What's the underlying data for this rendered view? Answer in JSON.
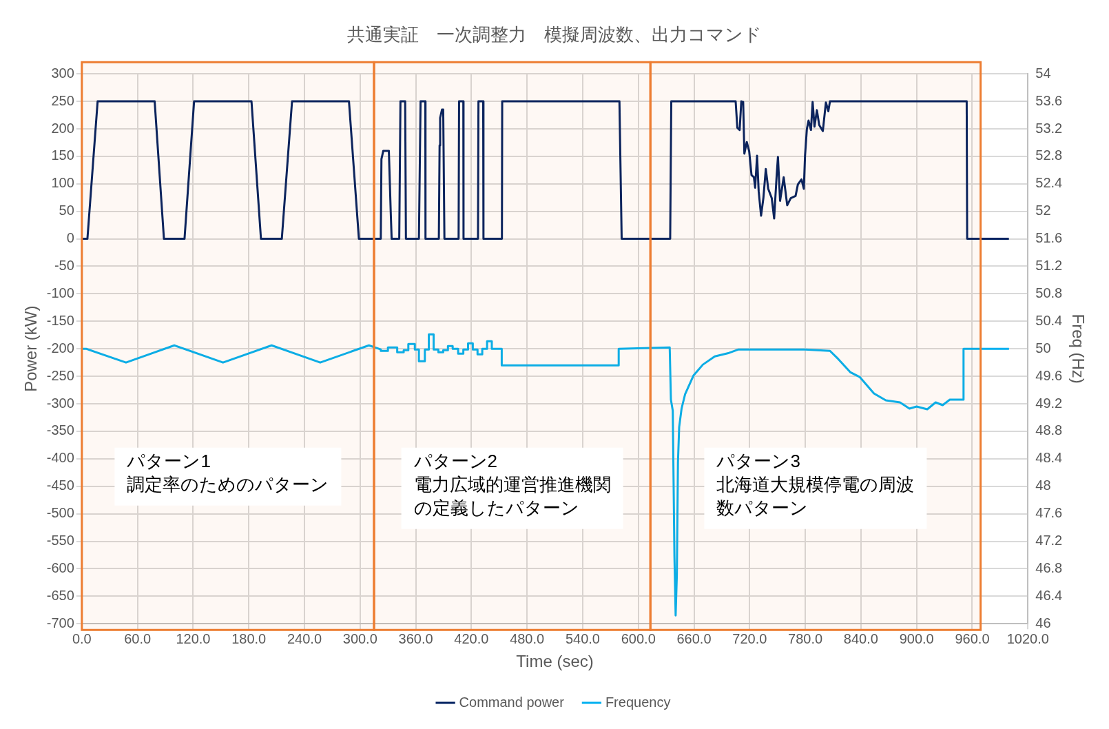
{
  "chart_data": {
    "type": "line",
    "title": "共通実証　一次調整力　模擬周波数、出力コマンド",
    "xlabel": "Time (sec)",
    "ylabel": "Power (kW)",
    "y2label": "Freq (Hz)",
    "xlim": [
      0,
      1020
    ],
    "xticks": [
      {
        "value": 0,
        "label": "0.0"
      },
      {
        "value": 60,
        "label": "60.0"
      },
      {
        "value": 120,
        "label": "120.0"
      },
      {
        "value": 180,
        "label": "180.0"
      },
      {
        "value": 240,
        "label": "240.0"
      },
      {
        "value": 300,
        "label": "300.0"
      },
      {
        "value": 360,
        "label": "360.0"
      },
      {
        "value": 420,
        "label": "420.0"
      },
      {
        "value": 480,
        "label": "480.0"
      },
      {
        "value": 540,
        "label": "540.0"
      },
      {
        "value": 600,
        "label": "600.0"
      },
      {
        "value": 660,
        "label": "660.0"
      },
      {
        "value": 720,
        "label": "720.0"
      },
      {
        "value": 780,
        "label": "780.0"
      },
      {
        "value": 840,
        "label": "840.0"
      },
      {
        "value": 900,
        "label": "900.0"
      },
      {
        "value": 960,
        "label": "960.0"
      },
      {
        "value": 1020,
        "label": "1020.0"
      }
    ],
    "ylim": [
      -700,
      300
    ],
    "yticks": [
      -700,
      -650,
      -600,
      -550,
      -500,
      -450,
      -400,
      -350,
      -300,
      -250,
      -200,
      -150,
      -100,
      -50,
      0,
      50,
      100,
      150,
      200,
      250,
      300
    ],
    "y2lim": [
      46,
      54
    ],
    "y2ticks": [
      46,
      46.4,
      46.8,
      47.2,
      47.6,
      48,
      48.4,
      48.8,
      49.2,
      49.6,
      50,
      50.4,
      50.8,
      51.2,
      51.6,
      52,
      52.4,
      52.8,
      53.2,
      53.6,
      54
    ],
    "grid": true,
    "legend": "bottom",
    "marker": "none",
    "line_style": "solid",
    "bands": [
      {
        "axis": "x",
        "from": 0,
        "to": 315,
        "label": "パターン1\n調定率のためのパターン",
        "color": "#ed7d31"
      },
      {
        "axis": "x",
        "from": 315,
        "to": 613,
        "label": "パターン2\n電力広域的運営推進機関の定義したパターン",
        "color": "#ed7d31"
      },
      {
        "axis": "x",
        "from": 613,
        "to": 969,
        "label": "パターン3\n北海道大規模停電の周波数パターン",
        "color": "#ed7d31"
      }
    ],
    "series": [
      {
        "name": "Command power",
        "color": "#002060",
        "x": [
          0,
          6,
          17,
          78.5,
          88.5,
          110.7,
          121,
          182.9,
          193.1,
          215.6,
          226.6,
          288,
          298.7,
          322.3,
          323,
          325,
          331,
          333,
          334,
          342.2,
          343.5,
          348.6,
          349.4,
          363.4,
          365.2,
          370.3,
          370.5,
          384.9,
          385.7,
          386.3,
          388.3,
          389.6,
          390.9,
          406.2,
          406.7,
          411.3,
          411.5,
          427.1,
          427.6,
          432.7,
          433,
          452.9,
          453.2,
          579.6,
          582,
          634.3,
          635.5,
          704.9,
          706.7,
          709.2,
          711,
          713,
          714.3,
          716.9,
          719.5,
          722,
          724.6,
          725.9,
          728,
          729.7,
          732.3,
          734.8,
          737.4,
          740,
          743.8,
          746.4,
          749,
          750.5,
          752.8,
          756.7,
          760.5,
          764.3,
          769.5,
          772,
          775.9,
          778.4,
          779.7,
          781.7,
          783.5,
          786.1,
          787.9,
          789.9,
          792.5,
          795,
          798.9,
          802.2,
          804.8,
          806.6,
          954,
          954.5,
          999.5
        ],
        "values": [
          0,
          0,
          250,
          250,
          0,
          0,
          250,
          250,
          0,
          0,
          250,
          250,
          0,
          0,
          145,
          160,
          160,
          50,
          0,
          0,
          250,
          250,
          0,
          0,
          250,
          250,
          0,
          0,
          170,
          220,
          235,
          235,
          0,
          0,
          250,
          250,
          0,
          0,
          250,
          250,
          0,
          0,
          250,
          250,
          0,
          0,
          250,
          250,
          202,
          198,
          250,
          249,
          155,
          176,
          159,
          116,
          112,
          93,
          151,
          87,
          42,
          74,
          127,
          91,
          74,
          37,
          112,
          149,
          69,
          112,
          61,
          74,
          78,
          99,
          108,
          91,
          151,
          200,
          215,
          198,
          249,
          204,
          234,
          207,
          196,
          248,
          232,
          250,
          250,
          0,
          0
        ]
      },
      {
        "name": "Frequency",
        "color": "#00b0f0",
        "axis": "y2",
        "x": [
          0,
          4.6,
          47.6,
          99.7,
          152.2,
          204.6,
          257,
          309.5,
          322.3,
          322.3,
          330,
          330,
          340,
          340,
          347,
          347,
          352,
          352,
          359,
          359,
          363.4,
          363.4,
          369.8,
          369.8,
          374.1,
          374.1,
          379.3,
          379.3,
          384.4,
          384.4,
          389.6,
          389.6,
          394.7,
          394.7,
          399.8,
          399.8,
          405.7,
          405.7,
          411.3,
          411.3,
          416.4,
          416.4,
          421.5,
          421.5,
          426.6,
          426.6,
          431.7,
          431.7,
          436.9,
          436.9,
          442,
          442,
          452.7,
          452.7,
          578.8,
          578.8,
          633.8,
          635.1,
          637.1,
          638.9,
          640.2,
          641.5,
          642.7,
          644,
          646.6,
          650.4,
          659.4,
          669.6,
          682.4,
          697.8,
          708,
          718.3,
          779.7,
          806.6,
          815.6,
          828.4,
          838.6,
          854,
          866.8,
          882.1,
          892.3,
          900,
          911.5,
          920.5,
          928.1,
          935.8,
          950.6,
          950.6,
          999.6
        ],
        "values": [
          50,
          50,
          49.8,
          50.05,
          49.8,
          50.05,
          49.8,
          50.05,
          49.99,
          49.97,
          49.97,
          50.02,
          50.02,
          49.95,
          49.95,
          49.98,
          49.98,
          50.07,
          50.07,
          49.99,
          49.99,
          49.82,
          49.82,
          49.99,
          49.99,
          50.21,
          50.21,
          49.99,
          49.99,
          49.95,
          49.95,
          49.98,
          49.98,
          50.04,
          50.04,
          50,
          50,
          49.93,
          49.93,
          49.99,
          49.99,
          50.08,
          50.08,
          49.99,
          49.99,
          49.92,
          49.92,
          50,
          50,
          50.11,
          50.11,
          50,
          50,
          49.76,
          49.76,
          50,
          50.02,
          49.26,
          49.1,
          46.98,
          46.12,
          46.71,
          48.35,
          48.86,
          49.13,
          49.34,
          49.61,
          49.77,
          49.89,
          49.94,
          49.99,
          49.99,
          49.99,
          49.97,
          49.85,
          49.66,
          49.59,
          49.35,
          49.25,
          49.22,
          49.13,
          49.16,
          49.12,
          49.22,
          49.18,
          49.26,
          49.26,
          50,
          50
        ]
      }
    ]
  }
}
